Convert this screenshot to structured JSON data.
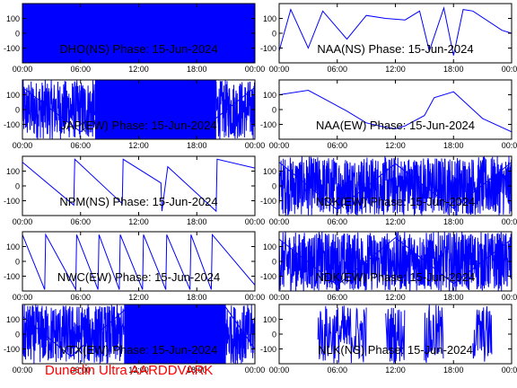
{
  "figure": {
    "credit": "Dunedin Ultra AARDDVARK",
    "credit_color": "#ff0000",
    "trace_color": "#0000ff",
    "frame_color": "#000000"
  },
  "chart_data": [
    {
      "type": "line",
      "title": "DHO(NS) Phase: 15-Jun-2024",
      "station": "DHO",
      "component": "NS",
      "x_ticks": [
        "00:00",
        "06:00",
        "12:00",
        "18:00",
        "00:00"
      ],
      "x_range_hours": [
        0,
        24
      ],
      "y_ticks": [
        100,
        0,
        -100
      ],
      "ylim": [
        -200,
        200
      ],
      "series": [
        {
          "pattern": "saturated",
          "segments": [
            [
              0,
              24
            ]
          ],
          "values": [
            [
              0,
              180
            ],
            [
              12,
              180
            ],
            [
              24,
              180
            ]
          ]
        }
      ]
    },
    {
      "type": "line",
      "title": "NAA(NS) Phase: 15-Jun-2024",
      "station": "NAA",
      "component": "NS",
      "x_ticks": [
        "00:00",
        "06:00",
        "12:00",
        "18:00",
        "00:00"
      ],
      "x_range_hours": [
        0,
        24
      ],
      "y_ticks": [
        100,
        0,
        -100
      ],
      "ylim": [
        -200,
        200
      ],
      "series": [
        {
          "pattern": "sawtooth",
          "values": [
            [
              0,
              -120
            ],
            [
              1.2,
              160
            ],
            [
              3,
              -100
            ],
            [
              4.5,
              150
            ],
            [
              7,
              -40
            ],
            [
              9,
              120
            ],
            [
              11,
              100
            ],
            [
              13,
              90
            ],
            [
              14.5,
              150
            ],
            [
              15.5,
              -120
            ],
            [
              17,
              170
            ],
            [
              18,
              -150
            ],
            [
              19,
              160
            ],
            [
              20,
              150
            ],
            [
              23,
              20
            ],
            [
              24,
              0
            ]
          ]
        }
      ]
    },
    {
      "type": "line",
      "title": "JAP(EW) Phase: 15-Jun-2024",
      "station": "JAP",
      "component": "EW",
      "x_ticks": [
        "00:00",
        "06:00",
        "12:00",
        "18:00",
        "00:00"
      ],
      "x_range_hours": [
        0,
        24
      ],
      "y_ticks": [
        100,
        0,
        -100
      ],
      "ylim": [
        -200,
        200
      ],
      "series": [
        {
          "pattern": "noise",
          "segments": [
            [
              0,
              7.5
            ],
            [
              20,
              24
            ]
          ],
          "values": [
            [
              0,
              150
            ],
            [
              6,
              -150
            ],
            [
              12,
              160
            ],
            [
              18,
              -160
            ],
            [
              24,
              150
            ]
          ]
        }
      ]
    },
    {
      "type": "line",
      "title": "NAA(EW) Phase: 15-Jun-2024",
      "station": "NAA",
      "component": "EW",
      "x_ticks": [
        "00:00",
        "06:00",
        "12:00",
        "18:00",
        "00:00"
      ],
      "x_range_hours": [
        0,
        24
      ],
      "y_ticks": [
        100,
        0,
        -100
      ],
      "ylim": [
        -200,
        200
      ],
      "series": [
        {
          "pattern": "bowl",
          "values": [
            [
              0,
              100
            ],
            [
              3,
              130
            ],
            [
              5,
              60
            ],
            [
              7,
              -10
            ],
            [
              9,
              -90
            ],
            [
              11,
              -120
            ],
            [
              12,
              -130
            ],
            [
              13,
              -110
            ],
            [
              15,
              -40
            ],
            [
              16,
              80
            ],
            [
              18,
              120
            ],
            [
              21,
              -60
            ],
            [
              24,
              -150
            ]
          ]
        }
      ]
    },
    {
      "type": "line",
      "title": "NPM(NS) Phase: 15-Jun-2024",
      "station": "NPM",
      "component": "NS",
      "x_ticks": [
        "00:00",
        "06:00",
        "12:00",
        "18:00",
        "00:00"
      ],
      "x_range_hours": [
        0,
        24
      ],
      "y_ticks": [
        100,
        0,
        -100
      ],
      "ylim": [
        -200,
        200
      ],
      "series": [
        {
          "pattern": "sawtooth",
          "values": [
            [
              0,
              160
            ],
            [
              5.3,
              -130
            ],
            [
              5.4,
              180
            ],
            [
              10.3,
              -120
            ],
            [
              10.4,
              180
            ],
            [
              14.3,
              20
            ],
            [
              14.4,
              -170
            ],
            [
              15,
              130
            ],
            [
              20,
              -170
            ],
            [
              20.1,
              180
            ],
            [
              24,
              120
            ]
          ]
        }
      ]
    },
    {
      "type": "line",
      "title": "NDK(EW) Phase: 15-Jun-2024",
      "station": "NDK",
      "component": "EW",
      "x_ticks": [
        "00:00",
        "06:00",
        "12:00",
        "18:00",
        "00:00"
      ],
      "x_range_hours": [
        0,
        24
      ],
      "y_ticks": [
        100,
        0,
        -100
      ],
      "ylim": [
        -200,
        200
      ],
      "series": [
        {
          "pattern": "noise",
          "segments": [
            [
              0,
              24
            ]
          ],
          "values": [
            [
              0,
              160
            ],
            [
              6,
              -160
            ],
            [
              12,
              150
            ],
            [
              18,
              -150
            ],
            [
              24,
              160
            ]
          ]
        }
      ]
    },
    {
      "type": "line",
      "title": "NWC(EW) Phase: 15-Jun-2024",
      "station": "NWC",
      "component": "EW",
      "x_ticks": [
        "00:00",
        "06:00",
        "12:00",
        "18:00",
        "00:00"
      ],
      "x_range_hours": [
        0,
        24
      ],
      "y_ticks": [
        100,
        0,
        -100
      ],
      "ylim": [
        -200,
        200
      ],
      "series": [
        {
          "pattern": "sawtooth",
          "values": [
            [
              0,
              180
            ],
            [
              2.3,
              -190
            ],
            [
              2.4,
              180
            ],
            [
              5.5,
              -190
            ],
            [
              5.6,
              180
            ],
            [
              7.8,
              -190
            ],
            [
              7.9,
              180
            ],
            [
              10,
              -190
            ],
            [
              10.1,
              180
            ],
            [
              12.4,
              -190
            ],
            [
              12.5,
              180
            ],
            [
              14.8,
              -190
            ],
            [
              14.9,
              180
            ],
            [
              17.3,
              -190
            ],
            [
              17.4,
              180
            ],
            [
              19.5,
              -190
            ],
            [
              19.6,
              180
            ],
            [
              24,
              -160
            ]
          ]
        }
      ]
    },
    {
      "type": "line",
      "title": "NDK(EW) Phase: 15-Jun-2024",
      "station": "NDK",
      "component": "EW",
      "x_ticks": [
        "00:00",
        "06:00",
        "12:00",
        "18:00",
        "00:00"
      ],
      "x_range_hours": [
        0,
        24
      ],
      "y_ticks": [
        100,
        0,
        -100
      ],
      "ylim": [
        -200,
        200
      ],
      "series": [
        {
          "pattern": "noise",
          "segments": [
            [
              0,
              24
            ]
          ],
          "values": [
            [
              0,
              150
            ],
            [
              6,
              -160
            ],
            [
              12,
              160
            ],
            [
              18,
              -150
            ],
            [
              24,
              150
            ]
          ]
        }
      ]
    },
    {
      "type": "line",
      "title": "VTX(EW) Phase: 15-Jun-2024",
      "station": "VTX",
      "component": "EW",
      "x_ticks": [
        "00:00",
        "06:00",
        "12:00",
        "18:00",
        "00:00"
      ],
      "x_range_hours": [
        0,
        24
      ],
      "y_ticks": [
        100,
        0,
        -100
      ],
      "ylim": [
        -200,
        200
      ],
      "series": [
        {
          "pattern": "noise",
          "segments": [
            [
              0,
              10.5
            ],
            [
              21,
              24
            ]
          ],
          "values": [
            [
              0,
              120
            ],
            [
              5,
              -150
            ],
            [
              10.5,
              160
            ],
            [
              11,
              180
            ],
            [
              21,
              180
            ],
            [
              24,
              -100
            ]
          ]
        }
      ]
    },
    {
      "type": "line",
      "title": "NLK(NS) Phase: 15-Jun-2024",
      "station": "NLK",
      "component": "NS",
      "x_ticks": [
        "00:00",
        "06:00",
        "12:00",
        "18:00",
        "00:00"
      ],
      "x_range_hours": [
        0,
        24
      ],
      "y_ticks": [
        100,
        0,
        -100
      ],
      "ylim": [
        -200,
        200
      ],
      "series": [
        {
          "pattern": "sparse",
          "segments": [
            [
              4,
              9
            ],
            [
              11,
              13
            ],
            [
              15,
              17
            ],
            [
              20,
              22
            ]
          ],
          "values": [
            [
              0,
              200
            ],
            [
              24,
              200
            ]
          ]
        }
      ]
    }
  ]
}
